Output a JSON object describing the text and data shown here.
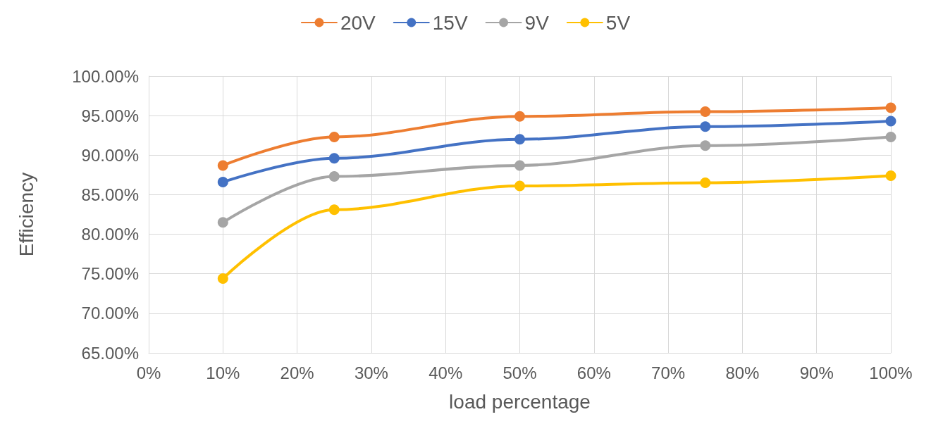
{
  "chart_data": {
    "type": "line",
    "xlabel": "load percentage",
    "ylabel": "Efficiency",
    "x": [
      10,
      25,
      50,
      75,
      100
    ],
    "series": [
      {
        "name": "20V",
        "color": "#ed7d31",
        "values": [
          88.7,
          92.3,
          94.9,
          95.5,
          96.0
        ]
      },
      {
        "name": "15V",
        "color": "#4472c4",
        "values": [
          86.6,
          89.6,
          92.0,
          93.6,
          94.3
        ]
      },
      {
        "name": "9V",
        "color": "#a5a5a5",
        "values": [
          81.5,
          87.3,
          88.7,
          91.2,
          92.3
        ]
      },
      {
        "name": "5V",
        "color": "#ffc000",
        "values": [
          74.4,
          83.1,
          86.1,
          86.5,
          87.4
        ]
      }
    ],
    "xlim": [
      0,
      100
    ],
    "xticks": [
      {
        "value": 0,
        "label": "0%"
      },
      {
        "value": 10,
        "label": "10%"
      },
      {
        "value": 20,
        "label": "20%"
      },
      {
        "value": 30,
        "label": "30%"
      },
      {
        "value": 40,
        "label": "40%"
      },
      {
        "value": 50,
        "label": "50%"
      },
      {
        "value": 60,
        "label": "60%"
      },
      {
        "value": 70,
        "label": "70%"
      },
      {
        "value": 80,
        "label": "80%"
      },
      {
        "value": 90,
        "label": "90%"
      },
      {
        "value": 100,
        "label": "100%"
      }
    ],
    "ylim": [
      65,
      100
    ],
    "yticks": [
      {
        "value": 65,
        "label": "65.00%"
      },
      {
        "value": 70,
        "label": "70.00%"
      },
      {
        "value": 75,
        "label": "75.00%"
      },
      {
        "value": 80,
        "label": "80.00%"
      },
      {
        "value": 85,
        "label": "85.00%"
      },
      {
        "value": 90,
        "label": "90.00%"
      },
      {
        "value": 95,
        "label": "95.00%"
      },
      {
        "value": 100,
        "label": "100.00%"
      }
    ],
    "grid": true,
    "legend": "top",
    "marker": "circle",
    "line_style": "solid"
  }
}
